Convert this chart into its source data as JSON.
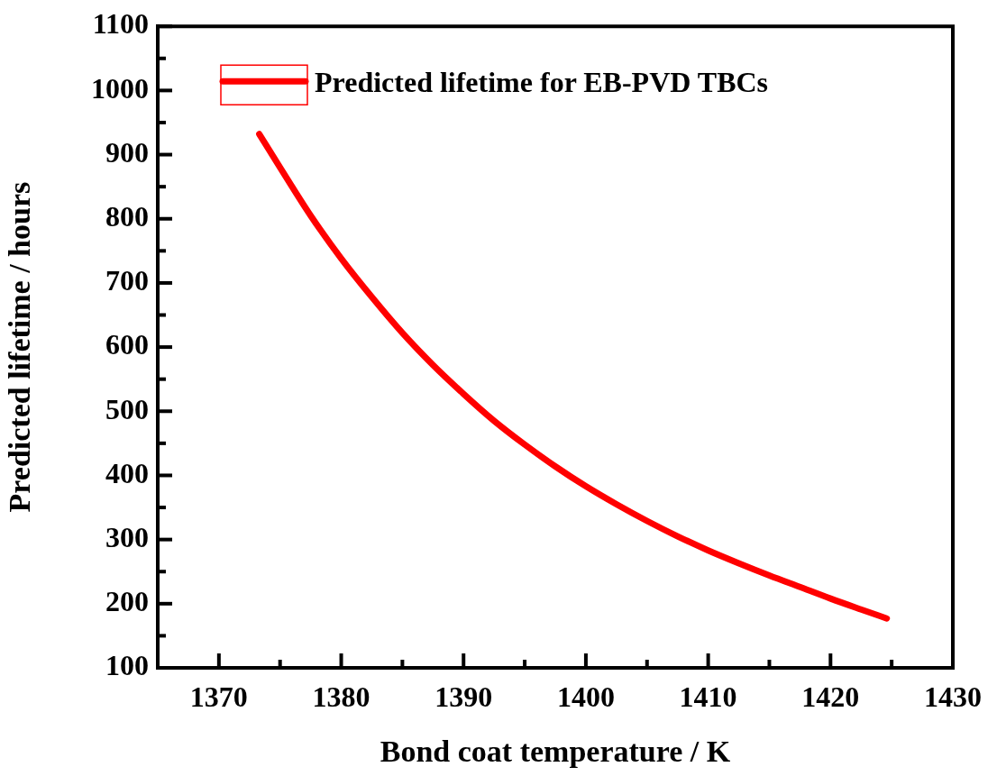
{
  "chart_data": {
    "type": "line",
    "xlabel": "Bond coat temperature / K",
    "ylabel": "Predicted lifetime / hours",
    "x": [
      1373.3,
      1375,
      1377.5,
      1380,
      1382.5,
      1385,
      1387.5,
      1390,
      1392.5,
      1395,
      1397.5,
      1400,
      1402.5,
      1405,
      1407.5,
      1410,
      1412.5,
      1415,
      1417.5,
      1420,
      1422.5,
      1424.6
    ],
    "series": [
      {
        "name": "Predicted lifetime for EB-PVD TBCs",
        "color": "#ff0000",
        "values": [
          932,
          880,
          805,
          738,
          678,
          622,
          572,
          527,
          485,
          448,
          414,
          383,
          355,
          329,
          305,
          283,
          263,
          244,
          226,
          208,
          191,
          177
        ]
      }
    ],
    "xlim": [
      1365,
      1430
    ],
    "xticks": [
      1370,
      1380,
      1390,
      1400,
      1410,
      1420,
      1430
    ],
    "ylim": [
      100,
      1100
    ],
    "yticks": [
      100,
      200,
      300,
      400,
      500,
      600,
      700,
      800,
      900,
      1000,
      1100
    ],
    "legend": "top left",
    "marker": "none",
    "line_style": "solid"
  }
}
